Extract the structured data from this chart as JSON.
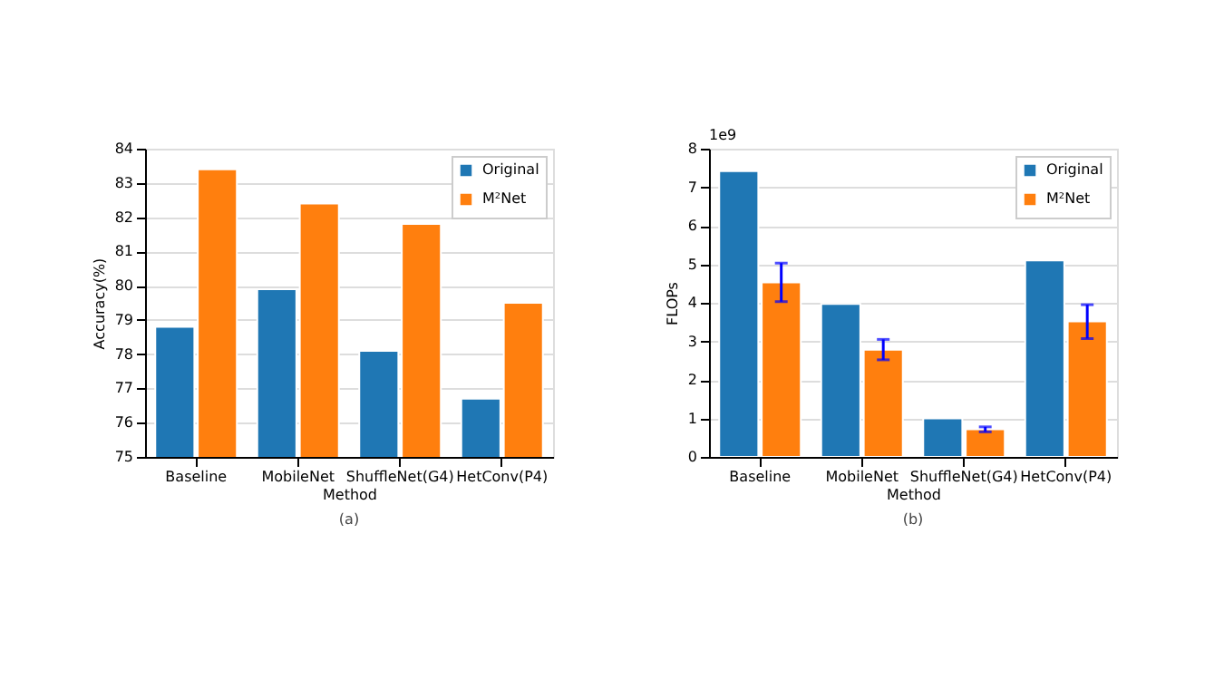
{
  "chart_data": [
    {
      "type": "bar",
      "xlabel": "Method",
      "ylabel": "Accuracy(%)",
      "categories": [
        "Baseline",
        "MobileNet",
        "ShuffleNet(G4)",
        "HetConv(P4)"
      ],
      "series": [
        {
          "name": "Original",
          "color": "#1f77b4",
          "values": [
            78.8,
            79.9,
            78.1,
            76.7
          ]
        },
        {
          "name": "M²Net",
          "color": "#ff7f0e",
          "values": [
            83.4,
            82.4,
            81.8,
            79.5
          ]
        }
      ],
      "ylim": [
        75,
        84
      ],
      "yticks": [
        75,
        76,
        77,
        78,
        79,
        80,
        81,
        82,
        83,
        84
      ],
      "grid": "y",
      "legend": "top right",
      "annotations": [
        "(a)"
      ]
    },
    {
      "type": "bar",
      "xlabel": "Method",
      "ylabel": "FLOPs",
      "categories": [
        "Baseline",
        "MobileNet",
        "ShuffleNet(G4)",
        "HetConv(P4)"
      ],
      "series": [
        {
          "name": "Original",
          "color": "#1f77b4",
          "values": [
            7.42,
            3.97,
            1.0,
            5.1
          ]
        },
        {
          "name": "M²Net",
          "color": "#ff7f0e",
          "values": [
            4.53,
            2.78,
            0.72,
            3.52
          ],
          "errors": [
            [
              4.03,
              5.03
            ],
            [
              2.52,
              3.05
            ],
            [
              0.65,
              0.78
            ],
            [
              3.07,
              3.95
            ]
          ]
        }
      ],
      "ylim": [
        0,
        8
      ],
      "yticks": [
        0,
        1,
        2,
        3,
        4,
        5,
        6,
        7,
        8
      ],
      "grid": "y",
      "legend": "top right",
      "annotations": [
        "1e9",
        "(b)"
      ]
    }
  ]
}
